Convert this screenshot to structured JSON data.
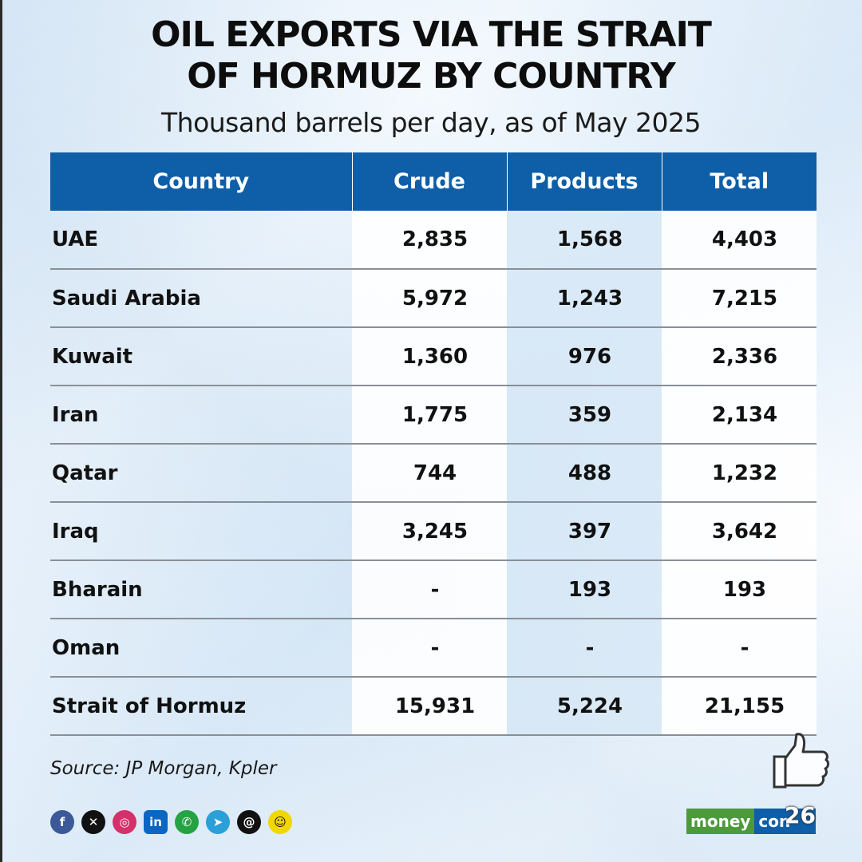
{
  "chart_data": {
    "type": "table",
    "title_line1": "OIL EXPORTS VIA THE STRAIT",
    "title_line2": "OF HORMUZ BY COUNTRY",
    "subtitle": "Thousand barrels per day, as of May 2025",
    "columns": [
      "Country",
      "Crude",
      "Products",
      "Total"
    ],
    "rows": [
      [
        "UAE",
        "2,835",
        "1,568",
        "4,403"
      ],
      [
        "Saudi Arabia",
        "5,972",
        "1,243",
        "7,215"
      ],
      [
        "Kuwait",
        "1,360",
        "976",
        "2,336"
      ],
      [
        "Iran",
        "1,775",
        "359",
        "2,134"
      ],
      [
        "Qatar",
        "744",
        "488",
        "1,232"
      ],
      [
        "Iraq",
        "3,245",
        "397",
        "3,642"
      ],
      [
        "Bharain",
        "-",
        "193",
        "193"
      ],
      [
        "Oman",
        "-",
        "-",
        "-"
      ],
      [
        "Strait of Hormuz",
        "15,931",
        "5,224",
        "21,155"
      ]
    ],
    "source": "Source: JP Morgan, Kpler"
  },
  "brand": {
    "logo_part1": "money",
    "logo_part2": "con"
  },
  "reaction": {
    "icon": "thumbs-up-icon",
    "count": "26"
  },
  "social_icons": [
    "facebook-icon",
    "x-icon",
    "instagram-icon",
    "linkedin-icon",
    "whatsapp-icon",
    "telegram-icon",
    "threads-icon",
    "snapchat-icon"
  ],
  "colors": {
    "header_bg": "#0f5ea8",
    "logo_green": "#4c9a3c",
    "logo_blue": "#0f5ea8"
  }
}
